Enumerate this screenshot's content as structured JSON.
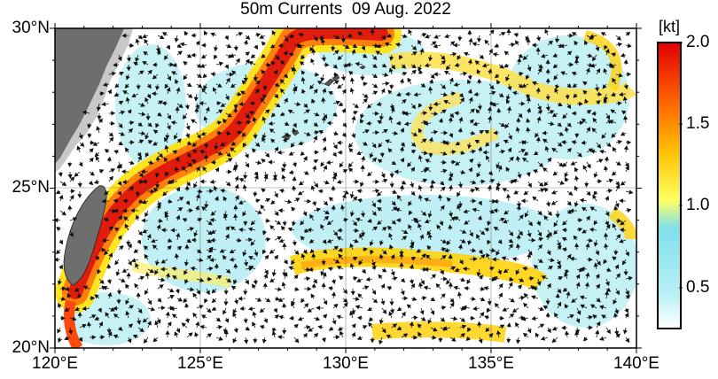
{
  "title": "50m Currents  09 Aug. 2022",
  "lat_labels": [
    "30°N",
    "25°N",
    "20°N"
  ],
  "lon_labels": [
    "120°E",
    "125°E",
    "130°E",
    "135°E",
    "140°E"
  ],
  "colorbar": {
    "unit": "[kt]",
    "ticks": [
      "2.0",
      "1.5",
      "1.0",
      "0.5"
    ],
    "range": [
      0.25,
      2.0
    ],
    "colors": [
      "#ffffff",
      "#b8f0f4",
      "#7fe0ec",
      "#ffff00",
      "#ffb000",
      "#ff6000",
      "#e00000"
    ]
  },
  "map_extent": {
    "lon": [
      120,
      140
    ],
    "lat": [
      20,
      30
    ]
  },
  "land_color": "#6e6e6e",
  "shelf_color": "#c8c8c8"
}
